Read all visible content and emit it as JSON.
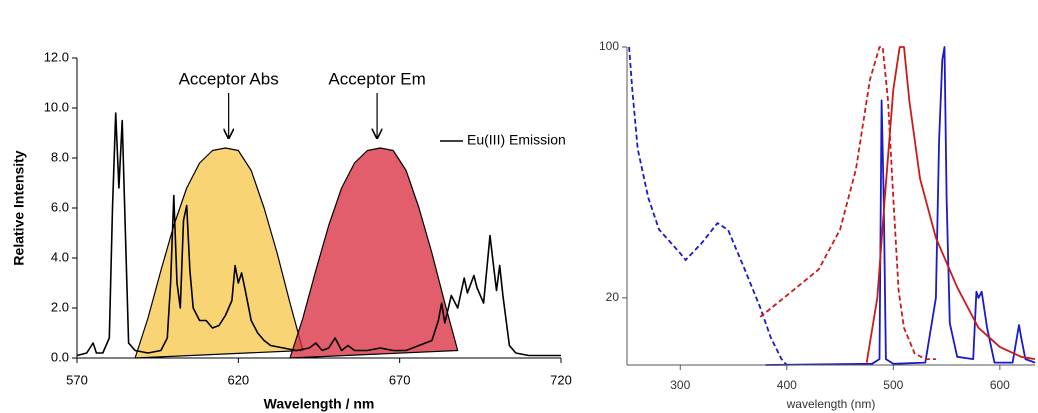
{
  "chart_data": [
    {
      "type": "line",
      "xlabel": "Wavelength / nm",
      "ylabel": "Relative Intensity",
      "xlim": [
        570,
        720
      ],
      "xticks": [
        570,
        620,
        670,
        720
      ],
      "ylim": [
        0,
        12
      ],
      "yticks": [
        {
          "value": 0,
          "label": "0.0"
        },
        {
          "value": 2,
          "label": "2.0"
        },
        {
          "value": 4,
          "label": "4.0"
        },
        {
          "value": 6,
          "label": "6.0"
        },
        {
          "value": 8,
          "label": "8.0"
        },
        {
          "value": 10,
          "label": "10.0"
        },
        {
          "value": 12,
          "label": "12.0"
        }
      ],
      "legend": "upper right",
      "annotations": [
        {
          "text": "Acceptor Abs",
          "x": 617
        },
        {
          "text": "Acceptor Em",
          "x": 663
        }
      ],
      "series": [
        {
          "style": "area",
          "color": "#f5c545",
          "x": [
            588,
            592,
            596,
            600,
            604,
            608,
            612,
            616,
            620,
            624,
            628,
            632,
            636,
            640
          ],
          "values": [
            0,
            1.6,
            3.5,
            5.3,
            6.8,
            7.8,
            8.3,
            8.4,
            8.3,
            7.5,
            6.0,
            4.2,
            2.2,
            0.3
          ]
        },
        {
          "style": "area",
          "color": "#d8283c",
          "x": [
            636,
            640,
            644,
            648,
            652,
            656,
            660,
            664,
            668,
            672,
            676,
            680,
            684,
            688
          ],
          "values": [
            0,
            1.6,
            3.5,
            5.3,
            6.8,
            7.8,
            8.3,
            8.4,
            8.3,
            7.5,
            6.0,
            4.2,
            2.2,
            0.3
          ]
        },
        {
          "name": "Eu(III) Emission",
          "style": "line",
          "color": "#000000",
          "x": [
            570,
            573,
            575,
            576,
            578,
            580,
            581,
            582,
            583,
            584,
            585,
            586,
            588,
            592,
            596,
            598,
            599,
            600,
            601,
            602,
            603,
            604,
            605,
            606,
            608,
            610,
            612,
            614,
            616,
            618,
            619,
            620,
            621,
            622,
            624,
            626,
            628,
            630,
            634,
            638,
            642,
            644,
            646,
            648,
            650,
            652,
            654,
            656,
            660,
            664,
            668,
            672,
            676,
            680,
            682,
            683,
            684,
            686,
            688,
            690,
            691,
            693,
            694,
            696,
            698,
            699,
            700,
            701,
            702,
            704,
            706,
            710,
            720
          ],
          "values": [
            0.1,
            0.2,
            0.6,
            0.2,
            0.2,
            0.8,
            6,
            9.8,
            6.8,
            9.5,
            5,
            0.6,
            0.3,
            0.2,
            0.3,
            0.8,
            3,
            6.5,
            3,
            2,
            5.5,
            6.1,
            3.5,
            2.0,
            1.5,
            1.5,
            1.2,
            1.3,
            1.7,
            2.3,
            3.7,
            3.0,
            3.4,
            2.8,
            1.5,
            1.0,
            0.7,
            0.5,
            0.4,
            0.3,
            0.4,
            0.6,
            0.3,
            0.4,
            0.8,
            0.3,
            0.5,
            0.3,
            0.3,
            0.4,
            0.3,
            0.3,
            0.5,
            0.7,
            1.5,
            2.2,
            1.4,
            2.5,
            2.0,
            3.2,
            2.6,
            3.3,
            2.8,
            2.2,
            4.9,
            3.8,
            2.7,
            3.7,
            2.5,
            0.5,
            0.2,
            0.1,
            0.1
          ]
        }
      ]
    },
    {
      "type": "line",
      "xlabel": "wavelength (nm)",
      "xlim": [
        250,
        633
      ],
      "xticks": [
        300,
        400,
        500,
        600
      ],
      "ylim": [
        13,
        100
      ],
      "yticks": [
        20,
        100
      ],
      "ylog": true,
      "series": [
        {
          "style": "line",
          "dash": true,
          "color": "#1a1acc",
          "x": [
            252,
            255,
            260,
            270,
            280,
            300,
            305,
            320,
            335,
            345,
            360,
            375,
            385,
            395,
            400
          ],
          "values": [
            100,
            76,
            52,
            38,
            31,
            26.6,
            25.5,
            28.4,
            32.3,
            30.9,
            24.2,
            18.8,
            15.5,
            13.5,
            13
          ]
        },
        {
          "style": "line",
          "color": "#1a1acc",
          "x": [
            380,
            480,
            487,
            489,
            491,
            493,
            500,
            530,
            540,
            543,
            546,
            548,
            550,
            553,
            560,
            575,
            578,
            580,
            583,
            588,
            595,
            612,
            618,
            620,
            624,
            633
          ],
          "values": [
            13,
            13.1,
            13.5,
            71,
            38,
            13.5,
            13.1,
            13.2,
            20,
            55,
            92,
            100,
            38,
            17,
            13.7,
            13.5,
            20.8,
            20,
            20.8,
            16.5,
            13.2,
            13.2,
            16.8,
            15.5,
            13.5,
            13.2
          ]
        },
        {
          "style": "line",
          "dash": true,
          "color": "#cc1a1a",
          "x": [
            375,
            400,
            430,
            450,
            465,
            478,
            487,
            490,
            495,
            500,
            505,
            510,
            520,
            530,
            540
          ],
          "values": [
            17.7,
            20.3,
            24,
            31,
            45.7,
            81,
            100,
            100,
            71,
            38,
            21,
            16.5,
            14,
            13.5,
            13.5
          ]
        },
        {
          "style": "line",
          "color": "#cc1a1a",
          "x": [
            475,
            485,
            492,
            500,
            506,
            510,
            515,
            525,
            540,
            560,
            580,
            600,
            620,
            633
          ],
          "values": [
            13.2,
            20,
            38,
            76,
            100,
            100,
            71,
            43,
            29.4,
            21.4,
            16.5,
            14.6,
            13.7,
            13.5
          ]
        }
      ]
    }
  ]
}
